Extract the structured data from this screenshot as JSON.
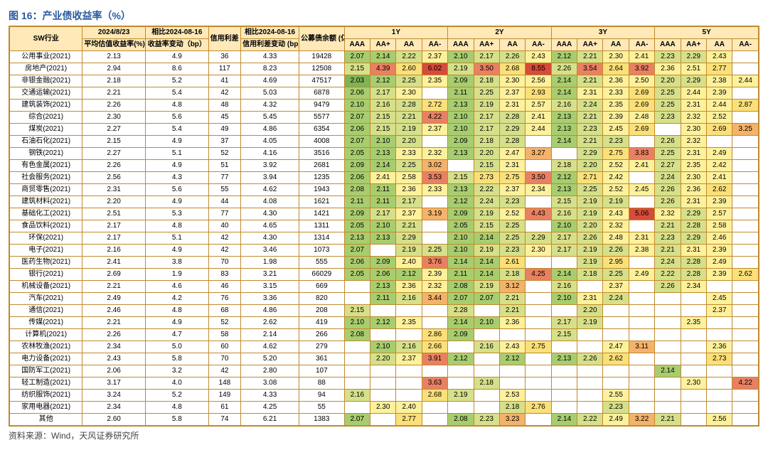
{
  "title": "图 16：产业债收益率（%）",
  "source": "资料来源：Wind，天风证券研究所",
  "header": {
    "industry": "SW行业",
    "g1_top": "2024/8/23",
    "g1_sub": "平均估值收益率(%)",
    "g2_top": "相比2024-08-16",
    "g2_sub": "收益率变动（bp）",
    "g3": "信用利差\n(bp)",
    "g4_top": "相比2024-08-16",
    "g4_sub": "信用利差变动\n(bp)",
    "g5": "公募债余额\n(亿元)",
    "terms": [
      "1Y",
      "2Y",
      "3Y",
      "5Y"
    ],
    "ratings": [
      "AAA",
      "AA+",
      "AA",
      "AA-"
    ]
  },
  "industries": [
    "公用事业(2021)",
    "房地产(2021)",
    "非银金融(2021)",
    "交通运输(2021)",
    "建筑装饰(2021)",
    "综合(2021)",
    "煤炭(2021)",
    "石油石化(2021)",
    "钢铁(2021)",
    "有色金属(2021)",
    "社会服务(2021)",
    "商贸零售(2021)",
    "建筑材料(2021)",
    "基础化工(2021)",
    "食品饮料(2021)",
    "环保(2021)",
    "电子(2021)",
    "医药生物(2021)",
    "银行(2021)",
    "机械设备(2021)",
    "汽车(2021)",
    "通信(2021)",
    "传媒(2021)",
    "计算机(2021)",
    "农林牧渔(2021)",
    "电力设备(2021)",
    "国防军工(2021)",
    "轻工制造(2021)",
    "纺织服饰(2021)",
    "家用电器(2021)",
    "其他"
  ],
  "avg_yield": [
    "2.13",
    "2.94",
    "2.18",
    "2.21",
    "2.26",
    "2.30",
    "2.27",
    "2.15",
    "2.27",
    "2.26",
    "2.56",
    "2.31",
    "2.20",
    "2.51",
    "2.17",
    "2.17",
    "2.16",
    "2.41",
    "2.69",
    "2.21",
    "2.49",
    "2.46",
    "2.21",
    "2.26",
    "2.34",
    "2.43",
    "2.06",
    "3.17",
    "3.24",
    "2.34",
    "2.60"
  ],
  "chg_bp": [
    "4.9",
    "8.6",
    "5.2",
    "5.4",
    "4.8",
    "5.6",
    "5.4",
    "4.9",
    "5.1",
    "4.9",
    "4.3",
    "5.6",
    "4.9",
    "5.3",
    "4.8",
    "5.1",
    "4.9",
    "3.8",
    "1.9",
    "4.6",
    "4.2",
    "4.8",
    "4.9",
    "4.7",
    "5.0",
    "5.8",
    "3.2",
    "4.0",
    "5.2",
    "4.8",
    "5.8"
  ],
  "spread": [
    "36",
    "117",
    "41",
    "42",
    "48",
    "45",
    "49",
    "37",
    "52",
    "51",
    "77",
    "55",
    "44",
    "77",
    "40",
    "42",
    "42",
    "70",
    "83",
    "46",
    "76",
    "68",
    "52",
    "58",
    "60",
    "70",
    "42",
    "148",
    "149",
    "61",
    "74"
  ],
  "spr_chg": [
    "4.33",
    "8.23",
    "4.69",
    "5.03",
    "4.32",
    "5.45",
    "4.86",
    "4.05",
    "4.16",
    "3.92",
    "3.94",
    "4.62",
    "4.08",
    "4.30",
    "4.65",
    "4.30",
    "3.46",
    "1.98",
    "3.21",
    "3.15",
    "3.36",
    "4.86",
    "2.62",
    "2.14",
    "4.62",
    "5.20",
    "2.80",
    "3.08",
    "4.33",
    "4.25",
    "6.21"
  ],
  "out_amt": [
    "19428",
    "12508",
    "47517",
    "6878",
    "9479",
    "5577",
    "6354",
    "4008",
    "3516",
    "2681",
    "1235",
    "1943",
    "1621",
    "1421",
    "1311",
    "1314",
    "1073",
    "555",
    "66029",
    "669",
    "820",
    "208",
    "419",
    "266",
    "279",
    "361",
    "107",
    "88",
    "94",
    "55",
    "1383"
  ],
  "grid": [
    [
      "2.07",
      "2.14",
      "2.22",
      "2.37",
      "2.10",
      "2.17",
      "2.26",
      "2.43",
      "2.12",
      "2.21",
      "2.30",
      "2.41",
      "2.23",
      "2.29",
      "2.43",
      ""
    ],
    [
      "2.15",
      "4.39",
      "2.60",
      "6.02",
      "2.19",
      "3.50",
      "2.68",
      "8.55",
      "2.26",
      "3.54",
      "2.64",
      "3.92",
      "2.36",
      "2.51",
      "2.77",
      ""
    ],
    [
      "2.03",
      "2.12",
      "2.25",
      "2.35",
      "2.09",
      "2.18",
      "2.30",
      "2.56",
      "2.14",
      "2.21",
      "2.36",
      "2.50",
      "2.20",
      "2.29",
      "2.38",
      "2.44"
    ],
    [
      "2.06",
      "2.17",
      "2.30",
      "",
      "2.11",
      "2.25",
      "2.37",
      "2.93",
      "2.14",
      "2.31",
      "2.33",
      "2.69",
      "2.25",
      "2.44",
      "2.39",
      ""
    ],
    [
      "2.10",
      "2.16",
      "2.28",
      "2.72",
      "2.13",
      "2.19",
      "2.31",
      "2.57",
      "2.16",
      "2.24",
      "2.35",
      "2.69",
      "2.25",
      "2.31",
      "2.44",
      "2.87"
    ],
    [
      "2.07",
      "2.15",
      "2.21",
      "4.22",
      "2.10",
      "2.17",
      "2.28",
      "2.41",
      "2.13",
      "2.21",
      "2.39",
      "2.48",
      "2.23",
      "2.32",
      "2.52",
      ""
    ],
    [
      "2.06",
      "2.15",
      "2.19",
      "2.37",
      "2.10",
      "2.17",
      "2.29",
      "2.44",
      "2.13",
      "2.23",
      "2.45",
      "2.69",
      "",
      "2.30",
      "2.69",
      "3.25"
    ],
    [
      "2.07",
      "2.10",
      "2.20",
      "",
      "2.09",
      "2.18",
      "2.28",
      "",
      "2.14",
      "2.21",
      "2.23",
      "",
      "2.26",
      "2.32",
      "",
      ""
    ],
    [
      "2.05",
      "2.13",
      "2.33",
      "2.32",
      "2.13",
      "2.20",
      "2.47",
      "3.27",
      "",
      "2.29",
      "2.75",
      "3.83",
      "2.25",
      "2.31",
      "2.49",
      ""
    ],
    [
      "2.09",
      "2.14",
      "2.25",
      "3.02",
      "",
      "2.15",
      "2.31",
      "",
      "2.18",
      "2.20",
      "2.52",
      "2.41",
      "2.27",
      "2.35",
      "2.42",
      ""
    ],
    [
      "2.06",
      "2.41",
      "2.58",
      "3.53",
      "2.15",
      "2.73",
      "2.75",
      "3.50",
      "2.12",
      "2.71",
      "2.42",
      "",
      "2.24",
      "2.30",
      "2.41",
      ""
    ],
    [
      "2.08",
      "2.11",
      "2.36",
      "2.33",
      "2.13",
      "2.22",
      "2.37",
      "2.34",
      "2.13",
      "2.25",
      "2.52",
      "2.45",
      "2.26",
      "2.36",
      "2.62",
      ""
    ],
    [
      "2.11",
      "2.11",
      "2.17",
      "",
      "2.12",
      "2.24",
      "2.23",
      "",
      "2.15",
      "2.19",
      "2.19",
      "",
      "2.26",
      "2.31",
      "2.39",
      ""
    ],
    [
      "2.09",
      "2.17",
      "2.37",
      "3.19",
      "2.09",
      "2.19",
      "2.52",
      "4.43",
      "2.16",
      "2.19",
      "2.43",
      "5.06",
      "2.32",
      "2.29",
      "2.57",
      ""
    ],
    [
      "2.05",
      "2.10",
      "2.21",
      "",
      "2.05",
      "2.15",
      "2.25",
      "",
      "2.10",
      "2.20",
      "2.32",
      "",
      "2.21",
      "2.28",
      "2.58",
      ""
    ],
    [
      "2.13",
      "2.13",
      "2.29",
      "",
      "2.10",
      "2.14",
      "2.25",
      "2.29",
      "2.17",
      "2.26",
      "2.48",
      "2.31",
      "2.23",
      "2.29",
      "2.46",
      ""
    ],
    [
      "2.07",
      "",
      "2.19",
      "2.25",
      "2.10",
      "2.19",
      "2.23",
      "2.30",
      "2.17",
      "2.19",
      "2.26",
      "2.38",
      "2.21",
      "2.31",
      "2.39",
      ""
    ],
    [
      "2.06",
      "2.09",
      "2.40",
      "3.76",
      "2.14",
      "2.14",
      "2.61",
      "",
      "",
      "2.19",
      "2.95",
      "",
      "2.24",
      "2.28",
      "2.49",
      ""
    ],
    [
      "2.05",
      "2.06",
      "2.12",
      "2.39",
      "2.11",
      "2.14",
      "2.18",
      "4.25",
      "2.14",
      "2.18",
      "2.25",
      "2.49",
      "2.22",
      "2.28",
      "2.39",
      "2.62"
    ],
    [
      "",
      "2.13",
      "2.36",
      "2.32",
      "2.08",
      "2.19",
      "3.12",
      "",
      "2.16",
      "",
      "2.37",
      "",
      "2.26",
      "2.34",
      "",
      ""
    ],
    [
      "",
      "2.11",
      "2.16",
      "3.44",
      "2.07",
      "2.07",
      "2.21",
      "",
      "2.10",
      "2.31",
      "2.24",
      "",
      "",
      "",
      "2.45",
      ""
    ],
    [
      "2.15",
      "",
      "",
      "",
      "2.28",
      "",
      "2.21",
      "",
      "",
      "2.20",
      "",
      "",
      "",
      "",
      "2.37",
      ""
    ],
    [
      "2.10",
      "2.12",
      "2.35",
      "",
      "2.14",
      "2.10",
      "2.36",
      "",
      "2.17",
      "2.19",
      "",
      "",
      "",
      "2.35",
      "",
      ""
    ],
    [
      "2.08",
      "",
      "",
      "2.86",
      "2.09",
      "",
      "",
      "",
      "2.15",
      "",
      "",
      "",
      "",
      "",
      "",
      ""
    ],
    [
      "",
      "2.10",
      "2.16",
      "2.66",
      "",
      "2.16",
      "2.43",
      "2.75",
      "",
      "",
      "2.47",
      "3.11",
      "",
      "",
      "2.36",
      ""
    ],
    [
      "",
      "2.20",
      "2.37",
      "3.91",
      "2.12",
      "",
      "2.12",
      "",
      "2.13",
      "2.26",
      "2.62",
      "",
      "",
      "",
      "2.73",
      ""
    ],
    [
      "",
      "",
      "",
      "",
      "",
      "",
      "",
      "",
      "",
      "",
      "",
      "",
      "2.14",
      "",
      "",
      ""
    ],
    [
      "",
      "",
      "",
      "3.63",
      "",
      "2.18",
      "",
      "",
      "",
      "",
      "",
      "",
      "",
      "2.30",
      "",
      "4.22"
    ],
    [
      "2.16",
      "",
      "",
      "2.68",
      "2.19",
      "",
      "2.53",
      "",
      "",
      "",
      "2.55",
      "",
      "",
      "",
      "",
      ""
    ],
    [
      "",
      "2.30",
      "2.40",
      "",
      "",
      "",
      "2.18",
      "2.76",
      "",
      "",
      "2.23",
      "",
      "",
      "",
      "",
      ""
    ],
    [
      "2.07",
      "",
      "2.77",
      "",
      "2.08",
      "2.23",
      "3.23",
      "",
      "2.14",
      "2.22",
      "2.49",
      "3.22",
      "2.21",
      "",
      "2.56",
      ""
    ]
  ],
  "colors": {
    "low": "#7eb356",
    "mid": "#fef19c",
    "high": "#e98062",
    "vhigh": "#d64b3a",
    "blank": "#ffffff"
  }
}
